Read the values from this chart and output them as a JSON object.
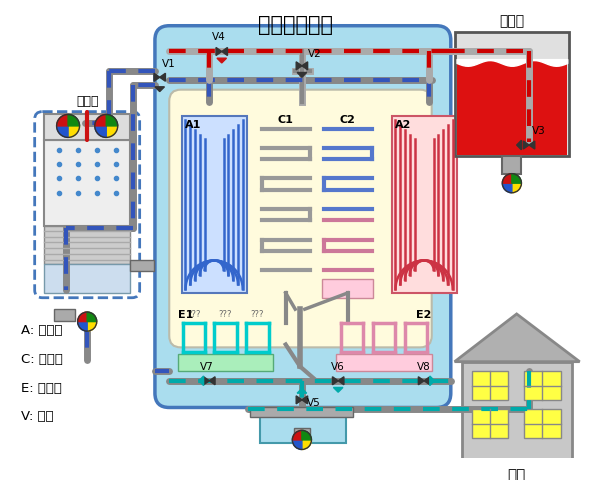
{
  "title": "吸附式冷水机",
  "label_cooling_tower": "冷却塔",
  "label_hot_tank": "热水箱",
  "label_room": "房间",
  "label_A": "A: 吸附床",
  "label_C": "C: 冷凝器",
  "label_E": "E: 蒸发器",
  "label_V": "V: 阀门",
  "colors": {
    "red_pipe": "#cc0000",
    "blue_pipe": "#3355bb",
    "teal_pipe": "#00bbbb",
    "gray_pipe": "#888888",
    "light_blue_bg": "#aaddee",
    "beige_bg": "#fff5cc",
    "blue_bed": "#7799cc",
    "red_bed": "#dd8899",
    "cyan_evap": "#00cccc",
    "pink_evap": "#ffaacc",
    "green_pool": "#99dd99",
    "white": "#ffffff",
    "black": "#000000"
  }
}
